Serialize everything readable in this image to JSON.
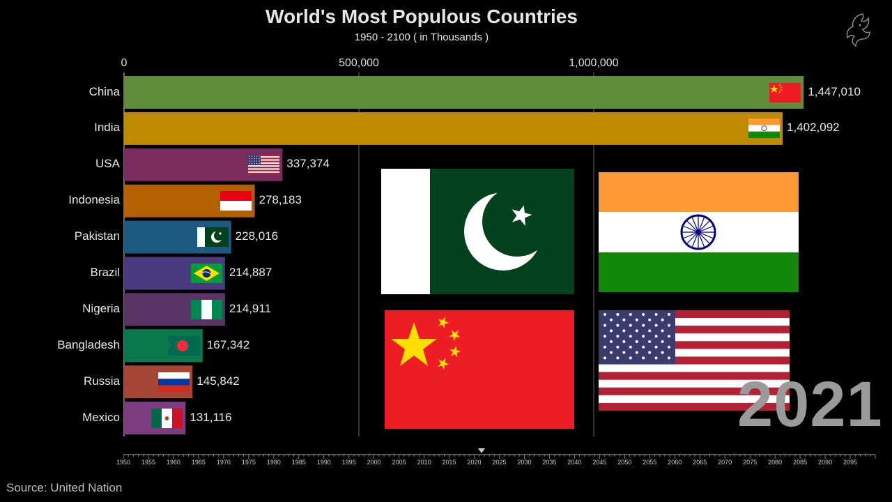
{
  "chart_data": {
    "type": "bar",
    "title": "World's Most Populous Countries",
    "subtitle": "1950 - 2100 ( in Thousands )",
    "categories": [
      "China",
      "India",
      "USA",
      "Indonesia",
      "Pakistan",
      "Brazil",
      "Nigeria",
      "Bangladesh",
      "Russia",
      "Mexico"
    ],
    "values": [
      1447010,
      1402092,
      337374,
      278183,
      228016,
      214887,
      214911,
      167342,
      145842,
      131116
    ],
    "value_labels": [
      "1,447,010",
      "1,402,092",
      "337,374",
      "278,183",
      "228,016",
      "214,887",
      "214,911",
      "167,342",
      "145,842",
      "131,116"
    ],
    "bar_colors": [
      "#5e8c3a",
      "#bd8a00",
      "#7a2c5e",
      "#b36100",
      "#1d5a82",
      "#4a3b80",
      "#5b3466",
      "#0a7a4e",
      "#a54536",
      "#7b3d7e"
    ],
    "x_ticks": [
      0,
      500000,
      1000000
    ],
    "x_tick_labels": [
      "0",
      "500,000",
      "1,000,000"
    ],
    "xlim": [
      0,
      1500000
    ],
    "orientation": "horizontal",
    "grid": true,
    "year": "2021",
    "timeline_labels": [
      "1950",
      "1955",
      "1960",
      "1965",
      "1970",
      "1975",
      "1980",
      "1985",
      "1990",
      "1995",
      "2000",
      "2005",
      "2010",
      "2015",
      "2020",
      "2025",
      "2030",
      "2035",
      "2040",
      "2045",
      "2050",
      "2055",
      "2060",
      "2065",
      "2070",
      "2075",
      "2080",
      "2085",
      "2090",
      "2095"
    ],
    "timeline_range": [
      1950,
      2100
    ],
    "timeline_current": 2021
  },
  "source": "Source: United Nation",
  "icons": {
    "logo": "dragon-logo-icon",
    "big_flags": [
      "pakistan-flag-icon",
      "india-flag-icon",
      "china-flag-icon",
      "usa-flag-icon"
    ]
  }
}
